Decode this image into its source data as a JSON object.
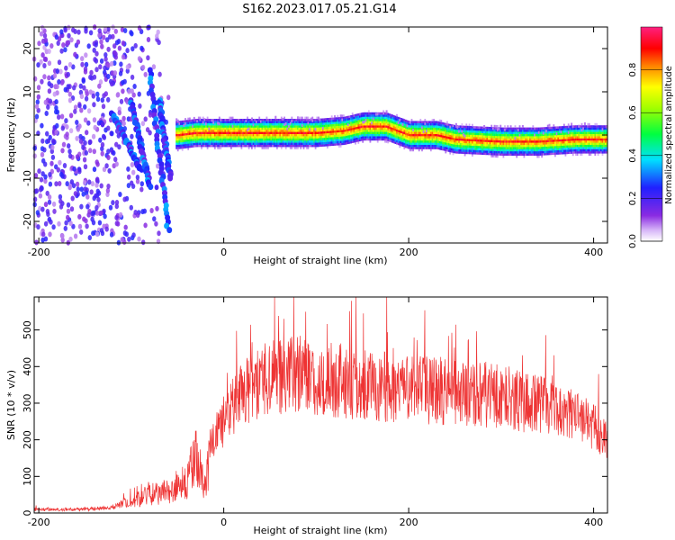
{
  "title": "S162.2023.017.05.21.G14",
  "chart_data": [
    {
      "type": "heatmap",
      "xlabel": "Height of straight line (km)",
      "ylabel": "Frequency (Hz)",
      "xlim": [
        -205,
        415
      ],
      "ylim": [
        -25,
        25
      ],
      "xticks": [
        -200,
        0,
        200,
        400
      ],
      "yticks": [
        -20,
        -10,
        0,
        10,
        20
      ],
      "colorbar": {
        "label": "Normalized spectral amplitude",
        "range": [
          0,
          1
        ],
        "ticks": [
          0.0,
          0.2,
          0.4,
          0.6,
          0.8
        ]
      },
      "ridge": {
        "x": [
          -50,
          -30,
          0,
          50,
          100,
          130,
          150,
          175,
          200,
          230,
          250,
          300,
          340,
          380,
          415
        ],
        "y": [
          0,
          0.5,
          0.5,
          0.5,
          0.5,
          1,
          2,
          2,
          0,
          0,
          -1,
          -1.5,
          -1.5,
          -1,
          -1
        ]
      }
    },
    {
      "type": "line",
      "xlabel": "Height of straight line (km)",
      "ylabel": "SNR (10 * v/v)",
      "xlim": [
        -205,
        415
      ],
      "ylim": [
        0,
        590
      ],
      "xticks": [
        -200,
        0,
        200,
        400
      ],
      "yticks": [
        0,
        100,
        200,
        300,
        400,
        500
      ],
      "color": "#ee3333",
      "envelope": {
        "x": [
          -205,
          -150,
          -120,
          -100,
          -80,
          -60,
          -40,
          -30,
          -20,
          -15,
          0,
          20,
          50,
          80,
          100,
          150,
          200,
          250,
          300,
          350,
          400,
          415
        ],
        "y": [
          10,
          10,
          15,
          30,
          50,
          60,
          90,
          150,
          60,
          180,
          250,
          330,
          370,
          380,
          370,
          350,
          340,
          330,
          320,
          290,
          240,
          200
        ]
      }
    }
  ]
}
